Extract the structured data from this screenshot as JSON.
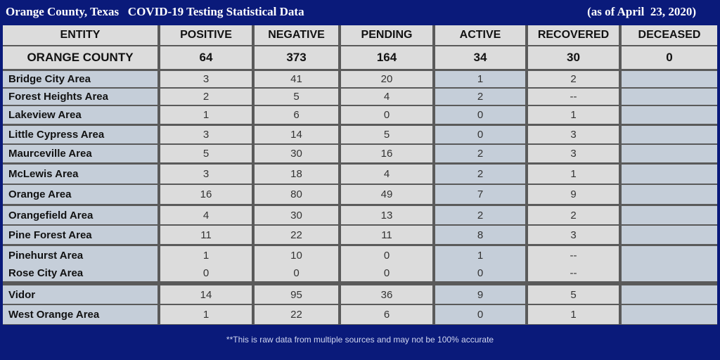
{
  "title": "Orange County, Texas   COVID-19 Testing Statistical Data",
  "date": "(as of April  23, 2020)",
  "columns": [
    "ENTITY",
    "POSITIVE",
    "NEGATIVE",
    "PENDING",
    "ACTIVE",
    "RECOVERED",
    "DECEASED"
  ],
  "total": [
    "ORANGE COUNTY",
    "64",
    "373",
    "164",
    "34",
    "30",
    "0"
  ],
  "rows": [
    [
      "Bridge City Area",
      "3",
      "41",
      "20",
      "1",
      "2",
      ""
    ],
    [
      "Forest Heights Area",
      "2",
      "5",
      "4",
      "2",
      "--",
      ""
    ],
    [
      "Lakeview Area",
      "1",
      "6",
      "0",
      "0",
      "1",
      ""
    ],
    [
      "Little Cypress Area",
      "3",
      "14",
      "5",
      "0",
      "3",
      ""
    ],
    [
      "Maurceville Area",
      "5",
      "30",
      "16",
      "2",
      "3",
      ""
    ],
    [
      "McLewis Area",
      "3",
      "18",
      "4",
      "2",
      "1",
      ""
    ],
    [
      "Orange Area",
      "16",
      "80",
      "49",
      "7",
      "9",
      ""
    ],
    [
      "Orangefield Area",
      "4",
      "30",
      "13",
      "2",
      "2",
      ""
    ],
    [
      "Pine Forest Area",
      "11",
      "22",
      "11",
      "8",
      "3",
      ""
    ],
    [
      "Pinehurst Area",
      "1",
      "10",
      "0",
      "1",
      "--",
      ""
    ],
    [
      "Rose City Area",
      "0",
      "0",
      "0",
      "0",
      "--",
      ""
    ],
    [
      "Vidor",
      "14",
      "95",
      "36",
      "9",
      "5",
      ""
    ],
    [
      "West Orange Area",
      "1",
      "22",
      "6",
      "0",
      "1",
      ""
    ]
  ],
  "footnote": "**This is raw data from multiple sources and may not be 100% accurate",
  "colors": {
    "background": "#0a1a7a",
    "cell_light": "#dcdcdc",
    "cell_blue": "#c5ced9"
  }
}
